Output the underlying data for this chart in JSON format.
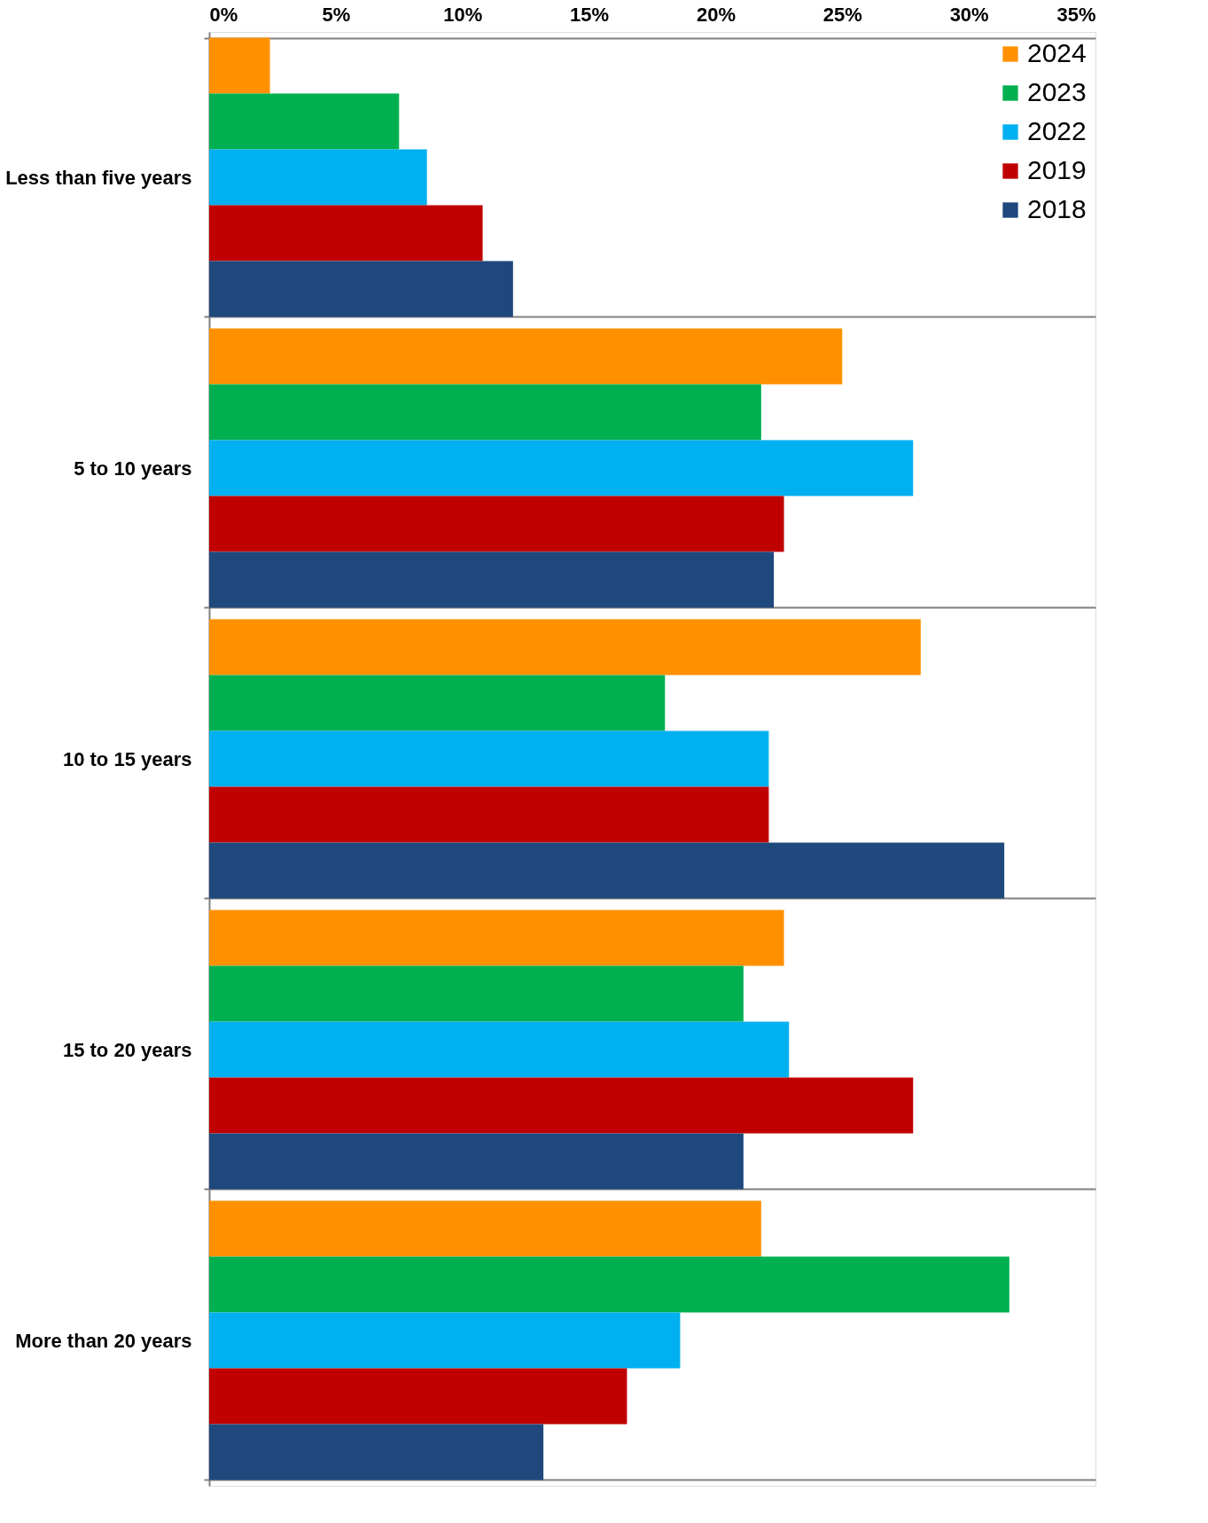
{
  "chart_data": {
    "type": "bar",
    "orientation": "horizontal",
    "categories": [
      "Less than five years",
      "5 to 10 years",
      "10 to 15 years",
      "15 to 20 years",
      "More than 20 years"
    ],
    "series": [
      {
        "name": "2024",
        "color": "#ff9100",
        "values": [
          2.4,
          25.0,
          28.1,
          22.7,
          21.8
        ]
      },
      {
        "name": "2023",
        "color": "#00b050",
        "values": [
          7.5,
          21.8,
          18.0,
          21.1,
          31.6
        ]
      },
      {
        "name": "2022",
        "color": "#00b0f0",
        "values": [
          8.6,
          27.8,
          22.1,
          22.9,
          18.6
        ]
      },
      {
        "name": "2019",
        "color": "#c00000",
        "values": [
          10.8,
          22.7,
          22.1,
          27.8,
          16.5
        ]
      },
      {
        "name": "2018",
        "color": "#1f497d",
        "values": [
          12.0,
          22.3,
          31.4,
          21.1,
          13.2
        ]
      }
    ],
    "xlim": [
      0,
      35
    ],
    "xticks": [
      {
        "value": 0,
        "label": "0%"
      },
      {
        "value": 5,
        "label": "5%"
      },
      {
        "value": 10,
        "label": "10%"
      },
      {
        "value": 15,
        "label": "15%"
      },
      {
        "value": 20,
        "label": "20%"
      },
      {
        "value": 25,
        "label": "25%"
      },
      {
        "value": 30,
        "label": "30%"
      },
      {
        "value": 35,
        "label": "35%"
      }
    ],
    "grid": "y",
    "legend": "top right"
  }
}
